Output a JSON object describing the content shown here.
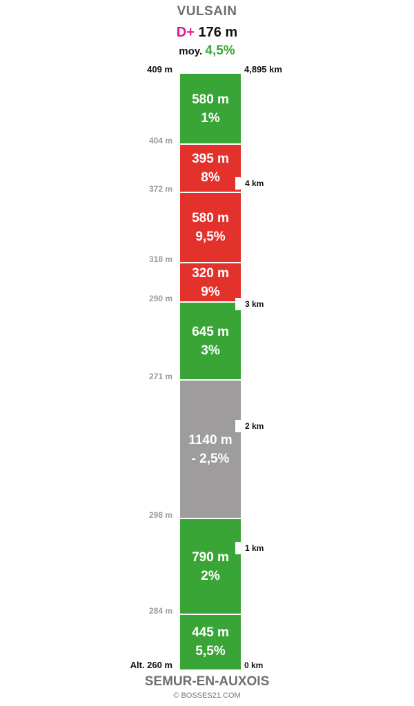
{
  "header": {
    "summit_name": "VULSAIN",
    "dplus_prefix": "D+",
    "dplus_value": "176 m",
    "avg_prefix": "moy.",
    "avg_value": "4,5%"
  },
  "top": {
    "altitude": "409 m",
    "distance": "4,895 km"
  },
  "segments": [
    {
      "length": "580 m",
      "grade": "1%",
      "color": "green"
    },
    {
      "length": "395 m",
      "grade": "8%",
      "color": "red"
    },
    {
      "length": "580 m",
      "grade": "9,5%",
      "color": "red"
    },
    {
      "length": "320 m",
      "grade": "9%",
      "color": "red"
    },
    {
      "length": "645 m",
      "grade": "3%",
      "color": "green"
    },
    {
      "length": "1140 m",
      "grade": "- 2,5%",
      "color": "gray"
    },
    {
      "length": "790 m",
      "grade": "2%",
      "color": "green"
    },
    {
      "length": "445 m",
      "grade": "5,5%",
      "color": "green"
    }
  ],
  "altitudes": [
    "404 m",
    "372 m",
    "318 m",
    "290 m",
    "271 m",
    "298 m",
    "284 m"
  ],
  "km_markers": [
    "4 km",
    "3 km",
    "2 km",
    "1 km"
  ],
  "bottom": {
    "altitude": "Alt. 260 m",
    "distance": "0 km",
    "start_name": "SEMUR-EN-AUXOIS",
    "copyright": "© BOSSES21.COM"
  },
  "colors": {
    "green": "#3aa537",
    "red": "#e3312c",
    "gray": "#9e9c9c",
    "dplus": "#e0178f"
  }
}
